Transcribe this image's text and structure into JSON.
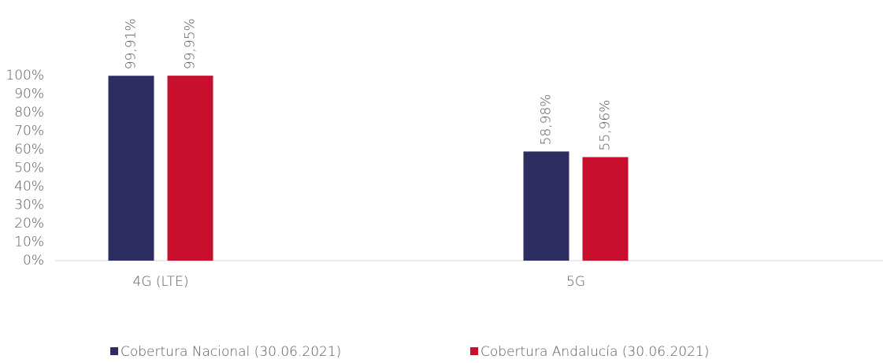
{
  "chart_data": {
    "type": "bar",
    "categories": [
      "4G (LTE)",
      "5G"
    ],
    "series": [
      {
        "name": "Cobertura Nacional (30.06.2021)",
        "color": "#2e2d62",
        "values": [
          99.91,
          58.98
        ],
        "value_labels": [
          "99,91%",
          "58,98%"
        ]
      },
      {
        "name": "Cobertura Andalucía (30.06.2021)",
        "color": "#c8102e",
        "values": [
          99.95,
          55.96
        ],
        "value_labels": [
          "99,95%",
          "55,96%"
        ]
      }
    ],
    "ylim": [
      0,
      100
    ],
    "yticks": [
      {
        "value": 0,
        "label": "0%"
      },
      {
        "value": 10,
        "label": "10%"
      },
      {
        "value": 20,
        "label": "20%"
      },
      {
        "value": 30,
        "label": "30%"
      },
      {
        "value": 40,
        "label": "40%"
      },
      {
        "value": 50,
        "label": "50%"
      },
      {
        "value": 60,
        "label": "60%"
      },
      {
        "value": 70,
        "label": "70%"
      },
      {
        "value": 80,
        "label": "80%"
      },
      {
        "value": 90,
        "label": "90%"
      },
      {
        "value": 100,
        "label": "100%"
      }
    ],
    "grid": false,
    "legend": "bottom"
  }
}
